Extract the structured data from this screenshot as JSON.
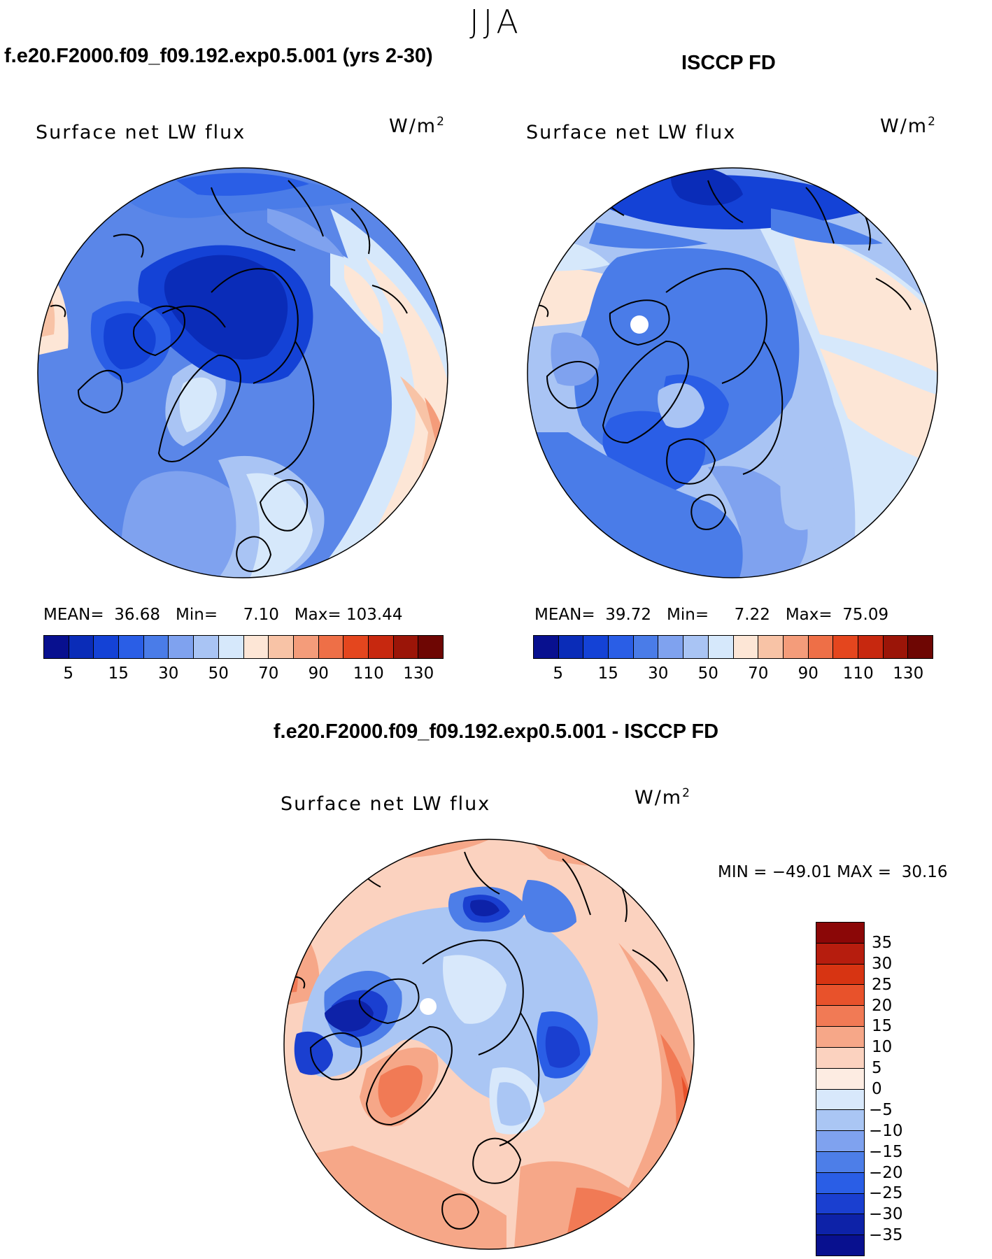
{
  "season": "JJA",
  "left_panel": {
    "header": "f.e20.F2000.f09_f09.192.exp0.5.001 (yrs 2-30)",
    "title": "Surface net LW flux",
    "units": "W/m",
    "units_exp": "2",
    "mean_label": "MEAN=",
    "mean": "36.68",
    "min_label": "Min=",
    "min": "7.10",
    "max_label": "Max=",
    "max": "103.44"
  },
  "right_panel": {
    "header": "ISCCP FD",
    "title": "Surface net LW flux",
    "units": "W/m",
    "units_exp": "2",
    "mean_label": "MEAN=",
    "mean": "39.72",
    "min_label": "Min=",
    "min": "7.22",
    "max_label": "Max=",
    "max": "75.09"
  },
  "diff_panel": {
    "header": "f.e20.F2000.f09_f09.192.exp0.5.001 - ISCCP FD",
    "title": "Surface net LW flux",
    "units": "W/m",
    "units_exp": "2",
    "minmax": "MIN = −49.01 MAX =  30.16"
  },
  "colorbar_top": {
    "ticks": [
      "5",
      "15",
      "30",
      "50",
      "70",
      "90",
      "110",
      "130"
    ],
    "colors": [
      "#08108f",
      "#0a2cb8",
      "#1442d6",
      "#2a5ee6",
      "#4a7ce8",
      "#7fa2ef",
      "#a9c4f4",
      "#d6e8fb",
      "#fde6d6",
      "#f8c3a6",
      "#f49c7a",
      "#ee6f47",
      "#e4461e",
      "#c7280f",
      "#9b1508",
      "#6e0603"
    ]
  },
  "colorbar_diff": {
    "ticks": [
      "35",
      "30",
      "25",
      "20",
      "15",
      "10",
      "5",
      "0",
      "−5",
      "−10",
      "−15",
      "−20",
      "−25",
      "−30",
      "−35"
    ],
    "colors": [
      "#8b0707",
      "#b61d0e",
      "#d73412",
      "#e8522b",
      "#f17a55",
      "#f6a788",
      "#fbd2bf",
      "#fdece2",
      "#d8e8fb",
      "#aac6f4",
      "#7fa2ef",
      "#4d7ee8",
      "#2a5ee6",
      "#1a3fd0",
      "#0d22a8",
      "#08108f"
    ]
  }
}
